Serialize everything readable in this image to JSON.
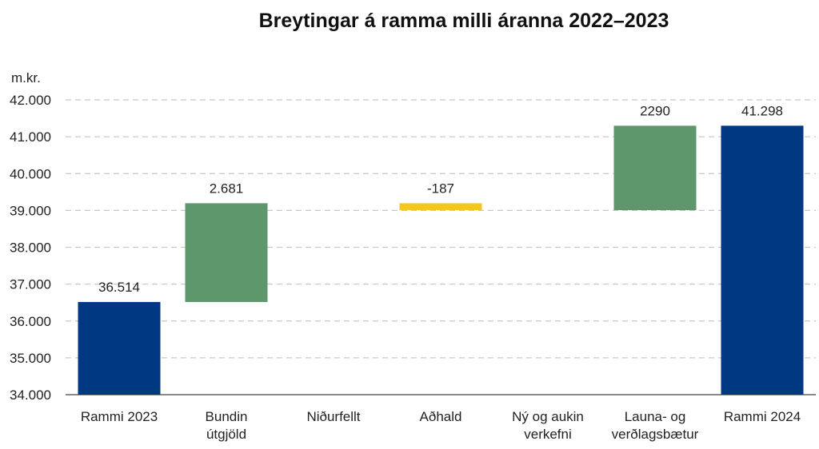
{
  "chart_data": {
    "type": "bar",
    "subtype": "waterfall",
    "title": "Breytingar á ramma milli áranna 2022–2023",
    "ylabel": "m.kr.",
    "ylim": [
      34000,
      42000
    ],
    "yticks": [
      34000,
      35000,
      36000,
      37000,
      38000,
      39000,
      40000,
      41000,
      42000
    ],
    "ytick_labels": [
      "34.000",
      "35.000",
      "36.000",
      "37.000",
      "38.000",
      "39.000",
      "40.000",
      "41.000",
      "42.000"
    ],
    "grid": true,
    "categories": [
      [
        "Rammi 2023"
      ],
      [
        "Bundin",
        "útgjöld"
      ],
      [
        "Niðurfellt"
      ],
      [
        "Aðhald"
      ],
      [
        "Ný og aukin",
        "verkefni"
      ],
      [
        "Launa- og",
        "verðlagsbætur"
      ],
      [
        "Rammi 2024"
      ]
    ],
    "bars": [
      {
        "kind": "total",
        "base": 34000,
        "top": 36514,
        "label": "36.514",
        "color": "#003882"
      },
      {
        "kind": "increase",
        "base": 36514,
        "top": 39195,
        "label": "2.681",
        "color": "#5e976c"
      },
      {
        "kind": "none",
        "base": 39195,
        "top": 39195,
        "label": "",
        "color": "#5e976c"
      },
      {
        "kind": "decrease",
        "base": 39008,
        "top": 39195,
        "label": "-187",
        "color": "#f5c522"
      },
      {
        "kind": "none",
        "base": 39008,
        "top": 39008,
        "label": "",
        "color": "#5e976c"
      },
      {
        "kind": "increase",
        "base": 39008,
        "top": 41298,
        "label": "2290",
        "color": "#5e976c"
      },
      {
        "kind": "total",
        "base": 34000,
        "top": 41298,
        "label": "41.298",
        "color": "#003882"
      }
    ]
  }
}
